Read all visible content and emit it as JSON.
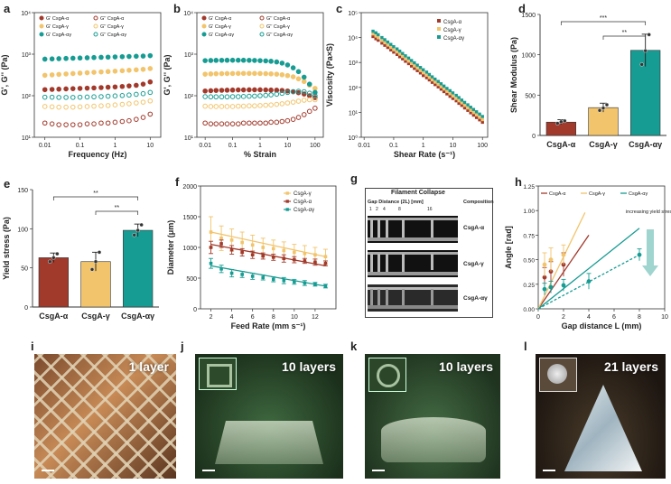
{
  "colors": {
    "alpha": "#a23a2c",
    "gamma": "#f2c46b",
    "alphagamma": "#179c93",
    "box": "#e5b34c",
    "arrow": "#9fd4cf"
  },
  "panel_letters": {
    "a": "a",
    "b": "b",
    "c": "c",
    "d": "d",
    "e": "e",
    "f": "f",
    "g": "g",
    "h": "h",
    "i": "i",
    "j": "j",
    "k": "k",
    "l": "l"
  },
  "chart_data": [
    {
      "id": "a",
      "type": "scatter",
      "xlabel": "Frequency (Hz)",
      "ylabel": "G', G'' (Pa)",
      "xlim": [
        0.005,
        20
      ],
      "ylim": [
        10,
        10000
      ],
      "xticks": [
        "0.01",
        "0.1",
        "1",
        "10"
      ],
      "yticks": [
        "10¹",
        "10²",
        "10³",
        "10⁴"
      ],
      "legend": [
        "G' CsgA-α",
        "G'' CsgA-α",
        "G' CsgA-γ",
        "G'' CsgA-γ",
        "G' CsgA-αγ",
        "G'' CsgA-αγ"
      ],
      "x": [
        0.01,
        0.016,
        0.025,
        0.04,
        0.063,
        0.1,
        0.16,
        0.25,
        0.4,
        0.63,
        1,
        1.6,
        2.5,
        4,
        6.3,
        10
      ],
      "series": [
        {
          "name": "G' CsgA-α",
          "color": "alpha",
          "filled": true,
          "values": [
            140,
            142,
            144,
            146,
            148,
            150,
            152,
            154,
            157,
            160,
            163,
            167,
            172,
            178,
            190,
            215
          ]
        },
        {
          "name": "G'' CsgA-α",
          "color": "alpha",
          "filled": false,
          "values": [
            22,
            21,
            20,
            20,
            20,
            20,
            21,
            21,
            22,
            22,
            23,
            24,
            25,
            27,
            30,
            36
          ]
        },
        {
          "name": "G' CsgA-γ",
          "color": "gamma",
          "filled": true,
          "values": [
            310,
            318,
            326,
            334,
            342,
            350,
            358,
            366,
            374,
            382,
            390,
            400,
            410,
            420,
            432,
            450
          ]
        },
        {
          "name": "G'' CsgA-γ",
          "color": "gamma",
          "filled": false,
          "values": [
            55,
            54,
            53,
            53,
            53,
            54,
            55,
            56,
            57,
            58,
            60,
            62,
            64,
            67,
            70,
            75
          ]
        },
        {
          "name": "G' CsgA-αγ",
          "color": "alphagamma",
          "filled": true,
          "values": [
            760,
            770,
            780,
            790,
            800,
            810,
            820,
            830,
            840,
            850,
            860,
            870,
            880,
            890,
            900,
            920
          ]
        },
        {
          "name": "G'' CsgA-αγ",
          "color": "alphagamma",
          "filled": false,
          "values": [
            92,
            92,
            91,
            91,
            91,
            92,
            93,
            94,
            95,
            97,
            99,
            101,
            104,
            108,
            112,
            120
          ]
        }
      ]
    },
    {
      "id": "b",
      "type": "scatter",
      "xlabel": "% Strain",
      "ylabel": "G', G'' (Pa)",
      "xlim": [
        0.005,
        200
      ],
      "ylim": [
        10,
        10000
      ],
      "xticks": [
        "0.01",
        "0.1",
        "1",
        "10",
        "100"
      ],
      "yticks": [
        "10¹",
        "10²",
        "10³",
        "10⁴"
      ],
      "legend": [
        "G' CsgA-α",
        "G'' CsgA-α",
        "G' CsgA-γ",
        "G'' CsgA-γ",
        "G' CsgA-αγ",
        "G'' CsgA-αγ"
      ],
      "x": [
        0.01,
        0.016,
        0.025,
        0.04,
        0.063,
        0.1,
        0.16,
        0.25,
        0.4,
        0.63,
        1,
        1.6,
        2.5,
        4,
        6.3,
        10,
        16,
        25,
        40,
        63,
        100
      ],
      "series": [
        {
          "name": "G' CsgA-α",
          "color": "alpha",
          "filled": true,
          "values": [
            130,
            132,
            134,
            135,
            136,
            137,
            138,
            138,
            139,
            139,
            139,
            138,
            137,
            136,
            134,
            130,
            125,
            118,
            110,
            100,
            90
          ]
        },
        {
          "name": "G'' CsgA-α",
          "color": "alpha",
          "filled": false,
          "values": [
            22,
            21,
            21,
            21,
            21,
            21,
            21,
            22,
            22,
            22,
            22,
            22,
            23,
            23,
            24,
            25,
            27,
            30,
            35,
            42,
            50
          ]
        },
        {
          "name": "G' CsgA-γ",
          "color": "gamma",
          "filled": true,
          "values": [
            330,
            335,
            338,
            340,
            342,
            343,
            344,
            345,
            345,
            344,
            343,
            340,
            336,
            330,
            320,
            305,
            285,
            255,
            220,
            180,
            150
          ]
        },
        {
          "name": "G'' CsgA-γ",
          "color": "gamma",
          "filled": false,
          "values": [
            56,
            55,
            55,
            55,
            55,
            55,
            56,
            56,
            57,
            57,
            58,
            59,
            60,
            62,
            64,
            67,
            70,
            74,
            78,
            80,
            80
          ]
        },
        {
          "name": "G' CsgA-αγ",
          "color": "alphagamma",
          "filled": true,
          "values": [
            700,
            705,
            710,
            712,
            714,
            715,
            715,
            714,
            712,
            708,
            700,
            690,
            675,
            650,
            610,
            550,
            470,
            380,
            280,
            190,
            120
          ]
        },
        {
          "name": "G'' CsgA-αγ",
          "color": "alphagamma",
          "filled": false,
          "values": [
            95,
            94,
            94,
            94,
            94,
            95,
            95,
            96,
            97,
            98,
            100,
            102,
            105,
            109,
            114,
            120,
            125,
            128,
            125,
            115,
            100
          ]
        }
      ]
    },
    {
      "id": "c",
      "type": "scatter",
      "xlabel": "Shear Rate (s⁻¹)",
      "ylabel": "Viscosity (Pa×S)",
      "xlim": [
        0.008,
        150
      ],
      "ylim": [
        1,
        100000
      ],
      "xticks": [
        "0.01",
        "0.1",
        "1",
        "10",
        "100"
      ],
      "yticks": [
        "10⁰",
        "10¹",
        "10²",
        "10³",
        "10⁴",
        "10⁵"
      ],
      "legend": [
        "CsgA-α",
        "CsgA-γ",
        "CsgA-αγ"
      ],
      "x": [
        0.02,
        0.025,
        0.03,
        0.04,
        0.05,
        0.063,
        0.08,
        0.1,
        0.13,
        0.16,
        0.2,
        0.25,
        0.32,
        0.4,
        0.5,
        0.63,
        0.8,
        1,
        1.3,
        1.6,
        2,
        2.5,
        3.2,
        4,
        5,
        6.3,
        8,
        10,
        13,
        16,
        20,
        25,
        32,
        40,
        50,
        63,
        80,
        100
      ],
      "series": [
        {
          "name": "CsgA-α",
          "color": "alpha",
          "values": [
            11000,
            9000,
            7800,
            6000,
            4900,
            4000,
            3200,
            2600,
            2100,
            1700,
            1400,
            1120,
            900,
            720,
            580,
            470,
            380,
            300,
            245,
            200,
            160,
            130,
            105,
            85,
            68,
            55,
            44,
            36,
            29,
            23,
            19,
            15,
            12,
            9.6,
            7.7,
            6.2,
            5.0,
            4.0
          ]
        },
        {
          "name": "CsgA-γ",
          "color": "gamma",
          "values": [
            14000,
            11500,
            9800,
            7600,
            6200,
            5000,
            4000,
            3250,
            2650,
            2150,
            1750,
            1400,
            1130,
            910,
            730,
            590,
            475,
            385,
            310,
            250,
            200,
            163,
            131,
            106,
            86,
            69,
            56,
            45,
            36,
            29,
            24,
            19,
            15,
            12,
            9.8,
            7.9,
            6.3,
            5.1
          ]
        },
        {
          "name": "CsgA-αγ",
          "color": "alphagamma",
          "values": [
            18000,
            15500,
            13000,
            10000,
            8200,
            6600,
            5300,
            4300,
            3500,
            2850,
            2300,
            1850,
            1500,
            1200,
            970,
            780,
            630,
            510,
            410,
            330,
            265,
            215,
            173,
            140,
            113,
            91,
            74,
            60,
            48,
            39,
            31,
            25,
            20,
            16,
            13,
            10.5,
            8.5,
            6.8
          ]
        }
      ]
    },
    {
      "id": "d",
      "type": "bar",
      "ylabel": "Shear Modulus (Pa)",
      "categories": [
        "CsgA-α",
        "CsgA-γ",
        "CsgA-αγ"
      ],
      "values": [
        165,
        345,
        1055
      ],
      "errors": [
        30,
        55,
        200
      ],
      "points": [
        [
          150,
          170,
          180
        ],
        [
          310,
          340,
          380
        ],
        [
          880,
          1050,
          1250
        ]
      ],
      "ylim": [
        0,
        1500
      ],
      "yticks": [
        "0",
        "500",
        "1000",
        "1500"
      ],
      "significance": [
        "***",
        "**"
      ]
    },
    {
      "id": "e",
      "type": "bar",
      "ylabel": "Yield stress (Pa)",
      "categories": [
        "CsgA-α",
        "CsgA-γ",
        "CsgA-αγ"
      ],
      "values": [
        63,
        58,
        98
      ],
      "errors": [
        6,
        12,
        8
      ],
      "points": [
        [
          58,
          63,
          68
        ],
        [
          48,
          58,
          70
        ],
        [
          92,
          98,
          105
        ]
      ],
      "ylim": [
        0,
        150
      ],
      "yticks": [
        "0",
        "50",
        "100",
        "150"
      ],
      "significance": [
        "**",
        "**"
      ]
    },
    {
      "id": "f",
      "type": "scatter",
      "xlabel": "Feed Rate (mm s⁻¹)",
      "ylabel": "Diameter (μm)",
      "xlim": [
        1,
        14
      ],
      "ylim": [
        0,
        2000
      ],
      "xticks": [
        "2",
        "4",
        "6",
        "8",
        "10",
        "12"
      ],
      "yticks": [
        "0",
        "500",
        "1000",
        "1500",
        "2000"
      ],
      "legend": [
        "CsgA-γ",
        "CsgA-α",
        "CsgA-αγ"
      ],
      "x": [
        2,
        3,
        4,
        5,
        6,
        7,
        8,
        9,
        10,
        11,
        12,
        13
      ],
      "series": [
        {
          "name": "CsgA-γ",
          "color": "gamma",
          "values": [
            1250,
            1150,
            1120,
            1080,
            1040,
            1000,
            980,
            950,
            920,
            900,
            880,
            850
          ],
          "errors": [
            250,
            200,
            180,
            170,
            160,
            150,
            140,
            140,
            130,
            130,
            120,
            120
          ],
          "fit": [
            1250,
            850
          ]
        },
        {
          "name": "CsgA-α",
          "color": "alpha",
          "values": [
            1000,
            1060,
            960,
            920,
            880,
            860,
            840,
            820,
            800,
            780,
            760,
            740
          ],
          "errors": [
            100,
            60,
            70,
            60,
            60,
            50,
            50,
            60,
            50,
            40,
            50,
            40
          ],
          "fit": [
            1050,
            700
          ]
        },
        {
          "name": "CsgA-αγ",
          "color": "alphagamma",
          "values": [
            740,
            650,
            580,
            560,
            530,
            510,
            480,
            460,
            440,
            420,
            400,
            370
          ],
          "errors": [
            80,
            60,
            60,
            50,
            50,
            40,
            40,
            50,
            40,
            40,
            30,
            30
          ],
          "fit": [
            700,
            370
          ]
        }
      ]
    },
    {
      "id": "h",
      "type": "scatter",
      "xlabel": "Gap distance L (mm)",
      "ylabel": "Angle [rad]",
      "xlim": [
        0,
        10
      ],
      "ylim": [
        0,
        1.25
      ],
      "xticks": [
        "0",
        "2",
        "4",
        "6",
        "8",
        "10"
      ],
      "yticks": [
        "0.00",
        "0.25",
        "0.50",
        "0.75",
        "1.00",
        "1.25"
      ],
      "legend": [
        "CsgA-α",
        "CsgA-γ",
        "CsgA-αγ"
      ],
      "annotation": "increasing yield stress",
      "series": [
        {
          "name": "CsgA-α",
          "color": "alpha",
          "x": [
            0.5,
            1,
            2
          ],
          "values": [
            0.32,
            0.38,
            0.45
          ],
          "errors": [
            0.1,
            0.1,
            0.12
          ]
        },
        {
          "name": "CsgA-γ",
          "color": "gamma",
          "x": [
            0.5,
            1,
            2
          ],
          "values": [
            0.45,
            0.5,
            0.55
          ],
          "errors": [
            0.12,
            0.12,
            0.1
          ]
        },
        {
          "name": "CsgA-αγ",
          "color": "alphagamma",
          "x": [
            0.5,
            1,
            2,
            4,
            8
          ],
          "values": [
            0.2,
            0.22,
            0.24,
            0.28,
            0.55
          ],
          "errors": [
            0.06,
            0.06,
            0.06,
            0.08,
            0.06
          ]
        }
      ],
      "fits": [
        {
          "color": "alpha",
          "x": [
            0,
            4
          ],
          "y": [
            0,
            0.75
          ],
          "style": "solid"
        },
        {
          "color": "gamma",
          "x": [
            0,
            3.7
          ],
          "y": [
            0,
            0.98
          ],
          "style": "solid"
        },
        {
          "color": "alphagamma",
          "x": [
            0,
            8
          ],
          "y": [
            0,
            0.82
          ],
          "style": "solid"
        },
        {
          "color": "alphagamma",
          "x": [
            0,
            8
          ],
          "y": [
            0,
            0.55
          ],
          "style": "dashed"
        }
      ]
    }
  ],
  "panel_g": {
    "title": "Filament Collapse",
    "gap_label": "Gap Distance (2L) [mm]",
    "composition_label": "Composition",
    "ticks": [
      "1",
      "2",
      "4",
      "8",
      "16"
    ],
    "rows": [
      "CsgA-α",
      "CsgA-γ",
      "CsgA-αγ"
    ]
  },
  "photos": {
    "i": {
      "label": "1 layer"
    },
    "j": {
      "label": "10 layers"
    },
    "k": {
      "label": "10 layers"
    },
    "l": {
      "label": "21 layers"
    }
  }
}
